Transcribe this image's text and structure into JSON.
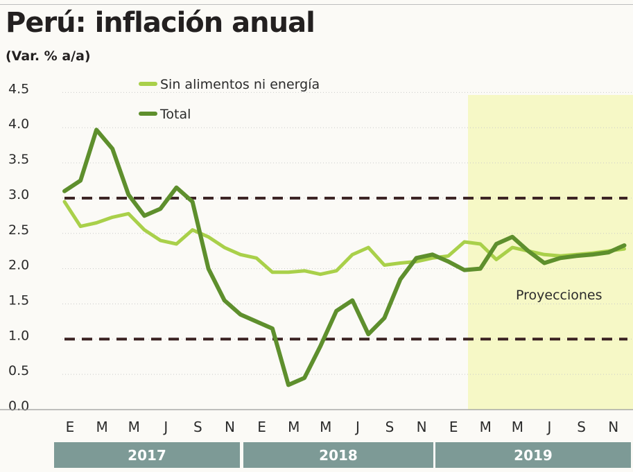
{
  "title": "Perú: inflación anual",
  "subtitle": "(Var. % a/a)",
  "colors": {
    "core": "#a9d04a",
    "total": "#5e8f2d",
    "target_band": "#3a2222",
    "projection_bg": "#f6f8c6",
    "year_bar": "#7d9a96"
  },
  "chart_data": {
    "type": "line",
    "title": "Perú: inflación anual",
    "ylabel": "(Var. % a/a)",
    "ylim": [
      0,
      4.5
    ],
    "y_ticks": [
      "0.0",
      "0.5",
      "1.0",
      "1.5",
      "2.0",
      "2.5",
      "3.0",
      "3.5",
      "4.0",
      "4.5"
    ],
    "x_tick_labels": [
      "E",
      "M",
      "M",
      "J",
      "S",
      "N",
      "E",
      "M",
      "M",
      "J",
      "S",
      "N",
      "E",
      "M",
      "M",
      "J",
      "S",
      "N"
    ],
    "years": [
      "2017",
      "2018",
      "2019"
    ],
    "legend": [
      "Sin alimentos ni energía",
      "Total"
    ],
    "legend_position": "top-left",
    "grid": true,
    "reference_lines": [
      3.0,
      1.0
    ],
    "projection_label": "Proyecciones",
    "projection_start_month": 25,
    "series": [
      {
        "name": "Sin alimentos ni energía",
        "values": [
          2.95,
          2.6,
          2.65,
          2.73,
          2.78,
          2.55,
          2.4,
          2.35,
          2.55,
          2.45,
          2.3,
          2.2,
          2.15,
          1.95,
          1.95,
          1.97,
          1.92,
          1.97,
          2.2,
          2.3,
          2.05,
          2.08,
          2.1,
          2.15,
          2.18,
          2.38,
          2.35,
          2.13,
          2.3,
          2.25,
          2.2,
          2.18,
          2.2,
          2.22,
          2.25,
          2.28
        ]
      },
      {
        "name": "Total",
        "values": [
          3.1,
          3.25,
          3.97,
          3.7,
          3.05,
          2.75,
          2.85,
          3.15,
          2.95,
          2.0,
          1.55,
          1.35,
          1.25,
          1.15,
          0.35,
          0.45,
          0.9,
          1.4,
          1.55,
          1.07,
          1.3,
          1.85,
          2.15,
          2.2,
          2.1,
          1.98,
          2.0,
          2.35,
          2.45,
          2.25,
          2.08,
          2.15,
          2.18,
          2.2,
          2.23,
          2.33
        ]
      }
    ]
  }
}
